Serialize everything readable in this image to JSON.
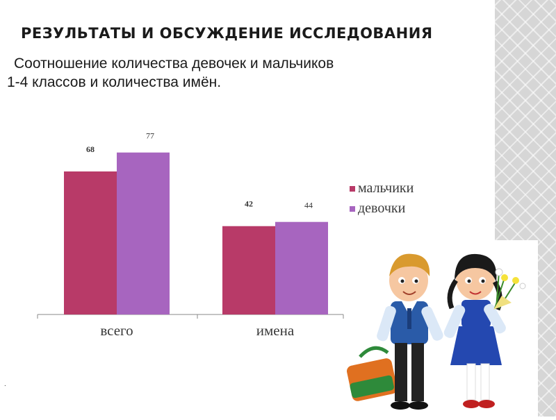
{
  "header": {
    "title": "РЕЗУЛЬТАТЫ И ОБСУЖДЕНИЕ ИССЛЕДОВАНИЯ",
    "subtitle_line1": "Соотношение количества девочек и мальчиков",
    "subtitle_line2": "1-4 классов и количества имён."
  },
  "footnote": ".",
  "chart_data": {
    "type": "bar",
    "categories": [
      "всего",
      "имена"
    ],
    "series": [
      {
        "name": "мальчики",
        "values": [
          68,
          42
        ],
        "color": "#b83a68"
      },
      {
        "name": "девочки",
        "values": [
          77,
          44
        ],
        "color": "#a765bf"
      }
    ],
    "ylim": [
      0,
      85
    ],
    "grid": false,
    "legend": "right"
  },
  "illustration": {
    "description_icons": [
      "boy-icon",
      "girl-icon",
      "schoolbag-icon",
      "flowers-icon"
    ],
    "colors": {
      "uniform": "#2a5ba8",
      "skirt": "#2448b0",
      "bag": "#e07020",
      "bag_trim": "#2e8a3a"
    }
  }
}
